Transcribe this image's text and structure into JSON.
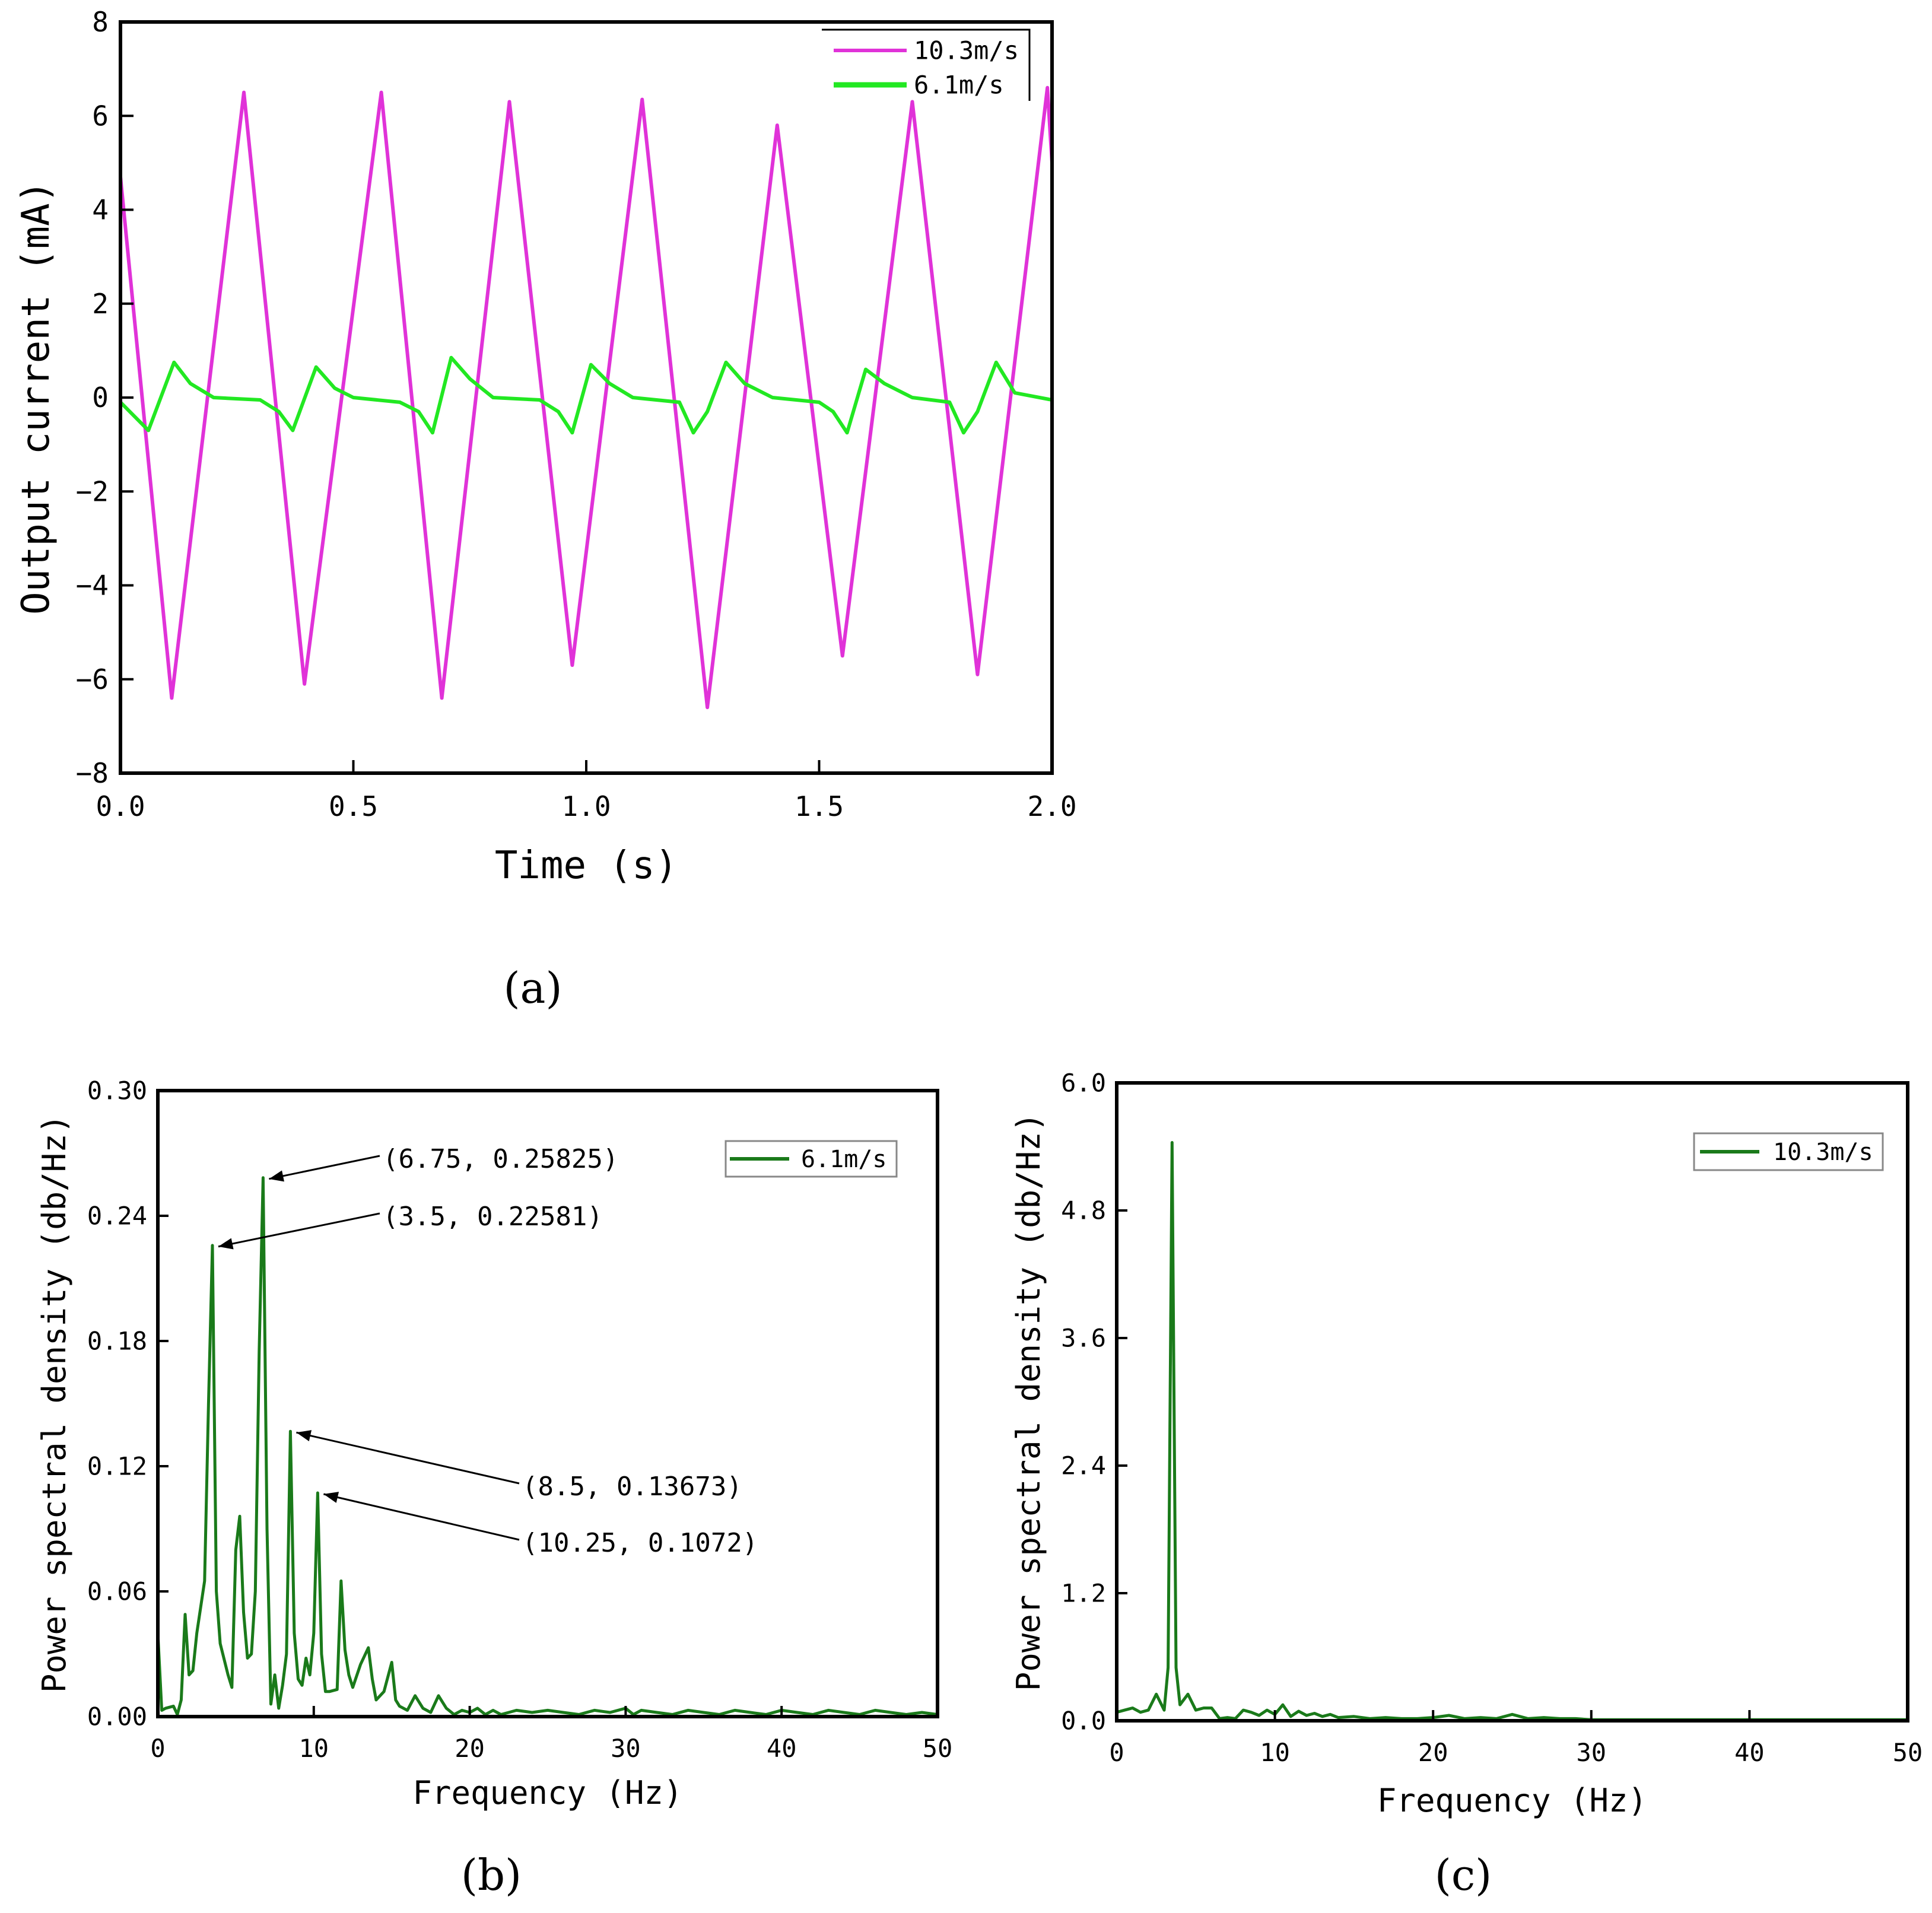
{
  "figure": {
    "captions": [
      "(a)",
      "(b)",
      "(c)"
    ]
  },
  "chart_data": [
    {
      "id": "a",
      "type": "line",
      "caption": "(a)",
      "xlabel": "Time (s)",
      "ylabel": "Output current (mA)",
      "xlim": [
        0.0,
        2.0
      ],
      "ylim": [
        -8,
        8
      ],
      "xticks": [
        0.0,
        0.5,
        1.0,
        1.5,
        2.0
      ],
      "xtick_labels": [
        "0.0",
        "0.5",
        "1.0",
        "1.5",
        "2.0"
      ],
      "yticks": [
        -8,
        -6,
        -4,
        -2,
        0,
        2,
        4,
        6,
        8
      ],
      "ytick_labels": [
        "−8",
        "−6",
        "−4",
        "−2",
        "0",
        "2",
        "4",
        "6",
        "8"
      ],
      "legend_position": "top-right",
      "series": [
        {
          "name": "10.3m/s",
          "color": "#e032d8",
          "x": [
            0.0,
            0.11,
            0.265,
            0.395,
            0.56,
            0.69,
            0.835,
            0.97,
            1.12,
            1.26,
            1.41,
            1.55,
            1.7,
            1.84,
            1.99,
            2.0
          ],
          "y": [
            4.7,
            -6.4,
            6.5,
            -6.1,
            6.5,
            -6.4,
            6.3,
            -5.7,
            6.35,
            -6.6,
            5.8,
            -5.5,
            6.3,
            -5.9,
            6.6,
            5.0
          ]
        },
        {
          "name": "6.1m/s",
          "color": "#22e822",
          "x": [
            0.0,
            0.06,
            0.115,
            0.15,
            0.2,
            0.3,
            0.34,
            0.37,
            0.42,
            0.46,
            0.5,
            0.6,
            0.64,
            0.67,
            0.71,
            0.75,
            0.8,
            0.9,
            0.94,
            0.97,
            1.01,
            1.05,
            1.1,
            1.2,
            1.23,
            1.26,
            1.3,
            1.34,
            1.4,
            1.5,
            1.53,
            1.56,
            1.6,
            1.64,
            1.7,
            1.78,
            1.81,
            1.84,
            1.88,
            1.92,
            2.0
          ],
          "y": [
            -0.1,
            -0.7,
            0.75,
            0.3,
            0.0,
            -0.05,
            -0.3,
            -0.7,
            0.65,
            0.2,
            0.0,
            -0.1,
            -0.3,
            -0.75,
            0.85,
            0.4,
            0.0,
            -0.05,
            -0.3,
            -0.75,
            0.7,
            0.3,
            0.0,
            -0.1,
            -0.75,
            -0.3,
            0.75,
            0.3,
            0.0,
            -0.1,
            -0.3,
            -0.75,
            0.6,
            0.3,
            0.0,
            -0.1,
            -0.75,
            -0.3,
            0.75,
            0.1,
            -0.05
          ]
        }
      ]
    },
    {
      "id": "b",
      "type": "line",
      "caption": "(b)",
      "xlabel": "Frequency (Hz)",
      "ylabel": "Power spectral density (db/Hz)",
      "xlim": [
        0,
        50
      ],
      "ylim": [
        0.0,
        0.3
      ],
      "xticks": [
        0,
        10,
        20,
        30,
        40,
        50
      ],
      "xtick_labels": [
        "0",
        "10",
        "20",
        "30",
        "40",
        "50"
      ],
      "yticks": [
        0.0,
        0.06,
        0.12,
        0.18,
        0.24,
        0.3
      ],
      "ytick_labels": [
        "0.00",
        "0.06",
        "0.12",
        "0.18",
        "0.24",
        "0.30"
      ],
      "legend_position": "top-right",
      "series": [
        {
          "name": "6.1m/s",
          "color": "#1a7a1a",
          "x": [
            0.0,
            0.25,
            0.5,
            1.0,
            1.25,
            1.5,
            1.75,
            2.0,
            2.25,
            2.5,
            3.0,
            3.25,
            3.5,
            3.75,
            4.0,
            4.5,
            4.75,
            5.0,
            5.25,
            5.5,
            5.75,
            6.0,
            6.25,
            6.5,
            6.75,
            7.0,
            7.25,
            7.5,
            7.75,
            8.0,
            8.25,
            8.5,
            8.75,
            9.0,
            9.25,
            9.5,
            9.75,
            10.0,
            10.25,
            10.5,
            10.75,
            11.0,
            11.5,
            11.75,
            12.0,
            12.25,
            12.5,
            13.0,
            13.5,
            13.75,
            14.0,
            14.5,
            15.0,
            15.25,
            15.5,
            16.0,
            16.5,
            17.0,
            17.5,
            18.0,
            18.5,
            19.0,
            19.5,
            20.0,
            20.5,
            21.0,
            21.5,
            22.0,
            22.5,
            23.0,
            24.0,
            25.0,
            26.0,
            27.0,
            28.0,
            29.0,
            30.0,
            30.5,
            31.0,
            32.0,
            33.0,
            34.0,
            35.0,
            36.0,
            37.0,
            38.0,
            39.0,
            40.0,
            41.0,
            42.0,
            43.0,
            44.0,
            45.0,
            46.0,
            47.0,
            48.0,
            49.0,
            50.0
          ],
          "y": [
            0.04,
            0.003,
            0.004,
            0.005,
            0.001,
            0.008,
            0.049,
            0.02,
            0.022,
            0.04,
            0.065,
            0.15,
            0.22581,
            0.06,
            0.035,
            0.02,
            0.014,
            0.08,
            0.096,
            0.05,
            0.028,
            0.03,
            0.06,
            0.175,
            0.25825,
            0.09,
            0.006,
            0.02,
            0.004,
            0.015,
            0.03,
            0.13673,
            0.04,
            0.018,
            0.015,
            0.028,
            0.02,
            0.04,
            0.1072,
            0.03,
            0.012,
            0.012,
            0.013,
            0.065,
            0.032,
            0.02,
            0.014,
            0.025,
            0.033,
            0.018,
            0.008,
            0.012,
            0.026,
            0.008,
            0.005,
            0.003,
            0.01,
            0.004,
            0.002,
            0.01,
            0.004,
            0.001,
            0.003,
            0.002,
            0.004,
            0.001,
            0.003,
            0.001,
            0.002,
            0.003,
            0.002,
            0.003,
            0.002,
            0.001,
            0.003,
            0.002,
            0.004,
            0.001,
            0.003,
            0.002,
            0.001,
            0.003,
            0.002,
            0.001,
            0.003,
            0.002,
            0.001,
            0.003,
            0.002,
            0.001,
            0.003,
            0.002,
            0.001,
            0.003,
            0.002,
            0.001,
            0.002,
            0.001
          ],
          "annotations": [
            {
              "label": "(6.75, 0.25825)",
              "x": 6.75,
              "y": 0.25825
            },
            {
              "label": "(3.5, 0.22581)",
              "x": 3.5,
              "y": 0.22581
            },
            {
              "label": "(8.5, 0.13673)",
              "x": 8.5,
              "y": 0.13673
            },
            {
              "label": "(10.25, 0.1072)",
              "x": 10.25,
              "y": 0.1072
            }
          ]
        }
      ]
    },
    {
      "id": "c",
      "type": "line",
      "caption": "(c)",
      "xlabel": "Frequency (Hz)",
      "ylabel": "Power spectral density (db/Hz)",
      "xlim": [
        0,
        50
      ],
      "ylim": [
        0.0,
        6.0
      ],
      "xticks": [
        0,
        10,
        20,
        30,
        40,
        50
      ],
      "xtick_labels": [
        "0",
        "10",
        "20",
        "30",
        "40",
        "50"
      ],
      "yticks": [
        0.0,
        1.2,
        2.4,
        3.6,
        4.8,
        6.0
      ],
      "ytick_labels": [
        "0.0",
        "1.2",
        "2.4",
        "3.6",
        "4.8",
        "6.0"
      ],
      "legend_position": "top-right",
      "series": [
        {
          "name": "10.3m/s",
          "color": "#1a7a1a",
          "x": [
            0.0,
            0.5,
            1.0,
            1.5,
            2.0,
            2.5,
            3.0,
            3.25,
            3.4993,
            3.75,
            4.0,
            4.5,
            5.0,
            5.5,
            6.0,
            6.5,
            7.0,
            7.5,
            8.0,
            8.5,
            9.0,
            9.5,
            10.0,
            10.5,
            11.0,
            11.5,
            12.0,
            12.5,
            13.0,
            13.5,
            14.0,
            15.0,
            16.0,
            17.0,
            18.0,
            19.0,
            20.0,
            21.0,
            22.0,
            23.0,
            24.0,
            25.0,
            26.0,
            27.0,
            28.0,
            29.0,
            30.0,
            35.0,
            40.0,
            45.0,
            50.0
          ],
          "y": [
            0.08,
            0.1,
            0.12,
            0.08,
            0.1,
            0.25,
            0.1,
            0.5,
            5.43933,
            0.5,
            0.15,
            0.25,
            0.1,
            0.12,
            0.12,
            0.02,
            0.03,
            0.02,
            0.1,
            0.08,
            0.05,
            0.1,
            0.06,
            0.15,
            0.04,
            0.09,
            0.05,
            0.07,
            0.04,
            0.06,
            0.03,
            0.04,
            0.02,
            0.03,
            0.02,
            0.02,
            0.03,
            0.05,
            0.02,
            0.03,
            0.02,
            0.06,
            0.02,
            0.03,
            0.02,
            0.02,
            0.01,
            0.01,
            0.01,
            0.01,
            0.01
          ]
        }
      ]
    }
  ]
}
